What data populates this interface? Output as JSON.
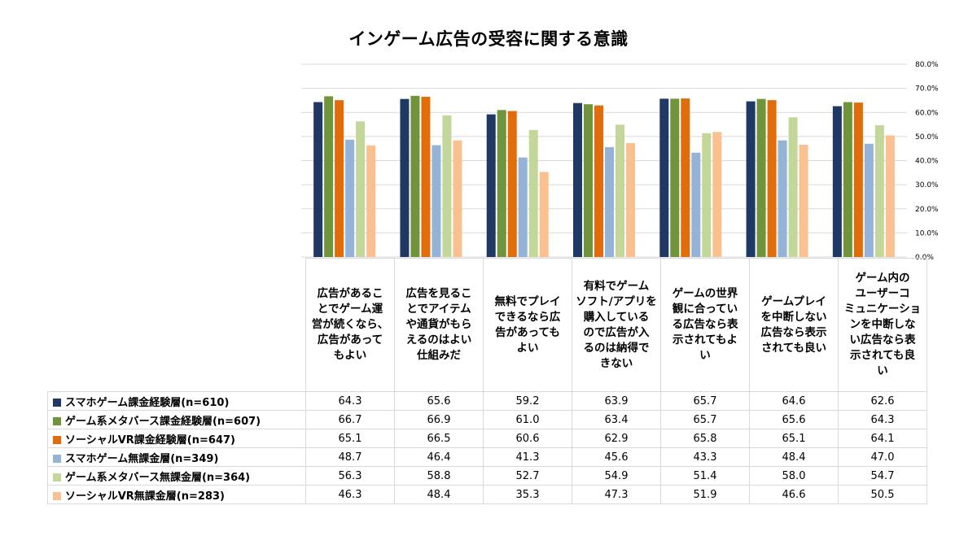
{
  "chart_data": {
    "type": "bar",
    "title": "インゲーム広告の受容に関する意識",
    "categories": [
      "広告があるこ\nとでゲーム運\n営が続くなら、\n広告があって\nもよい",
      "広告を見るこ\nとでアイテム\nや通貨がもら\nえるのはよい\n仕組みだ",
      "無料でプレイ\nできるなら広\n告があっても\nよい",
      "有料でゲーム\nソフト/アプリを\n購入している\nので広告が入\nるのは納得で\nきない",
      "ゲームの世界\n観に合ってい\nる広告なら表\n示されてもよ\nい",
      "ゲームプレイ\nを中断しない\n広告なら表示\nされても良い",
      "ゲーム内の\nユーザーコ\nミュニケーショ\nンを中断しな\nい広告なら表\n示されても良\nい"
    ],
    "y_ticks": [
      "0.0%",
      "10.0%",
      "20.0%",
      "30.0%",
      "40.0%",
      "50.0%",
      "60.0%",
      "70.0%",
      "80.0%"
    ],
    "ylim": [
      0,
      80
    ],
    "grid": true,
    "legend": "table-below",
    "series": [
      {
        "name": "スマホゲーム課金経験層(n=610)",
        "color": "#1f3864",
        "values": [
          64.3,
          65.6,
          59.2,
          63.9,
          65.7,
          64.6,
          62.6
        ],
        "labels": [
          "64.3",
          "65.6",
          "59.2",
          "63.9",
          "65.7",
          "64.6",
          "62.6"
        ]
      },
      {
        "name": "ゲーム系メタバース課金経験層(n=607)",
        "color": "#70943c",
        "values": [
          66.7,
          66.9,
          61.0,
          63.4,
          65.7,
          65.6,
          64.3
        ],
        "labels": [
          "66.7",
          "66.9",
          "61.0",
          "63.4",
          "65.7",
          "65.6",
          "64.3"
        ]
      },
      {
        "name": "ソーシャルVR課金経験層(n=647)",
        "color": "#e36c0a",
        "values": [
          65.1,
          66.5,
          60.6,
          62.9,
          65.8,
          65.1,
          64.1
        ],
        "labels": [
          "65.1",
          "66.5",
          "60.6",
          "62.9",
          "65.8",
          "65.1",
          "64.1"
        ]
      },
      {
        "name": "スマホゲーム無課金層(n=349)",
        "color": "#95b3d7",
        "values": [
          48.7,
          46.4,
          41.3,
          45.6,
          43.3,
          48.4,
          47.0
        ],
        "labels": [
          "48.7",
          "46.4",
          "41.3",
          "45.6",
          "43.3",
          "48.4",
          "47.0"
        ]
      },
      {
        "name": "ゲーム系メタバース無課金層(n=364)",
        "color": "#c4d79b",
        "values": [
          56.3,
          58.8,
          52.7,
          54.9,
          51.4,
          58.0,
          54.7
        ],
        "labels": [
          "56.3",
          "58.8",
          "52.7",
          "54.9",
          "51.4",
          "58.0",
          "54.7"
        ]
      },
      {
        "name": "ソーシャルVR無課金層(n=283)",
        "color": "#fac090",
        "values": [
          46.3,
          48.4,
          35.3,
          47.3,
          51.9,
          46.6,
          50.5
        ],
        "labels": [
          "46.3",
          "48.4",
          "35.3",
          "47.3",
          "51.9",
          "46.6",
          "50.5"
        ]
      }
    ]
  }
}
